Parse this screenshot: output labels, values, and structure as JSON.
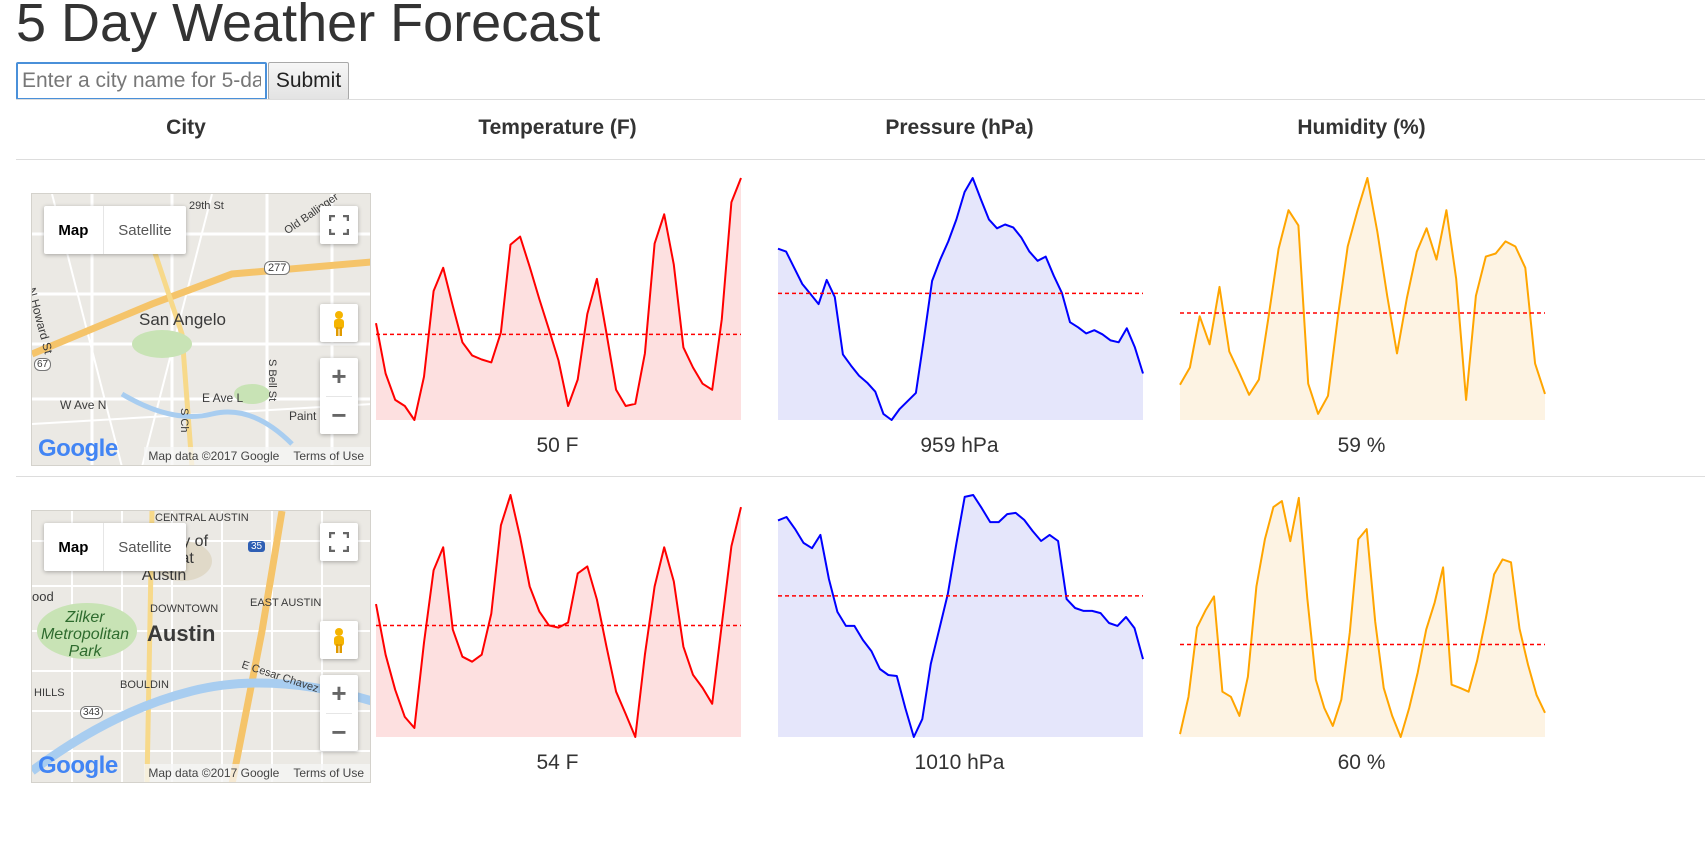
{
  "page": {
    "title": "5 Day Weather Forecast"
  },
  "search": {
    "placeholder": "Enter a city name for 5-day forecast",
    "submit_label": "Submit"
  },
  "table": {
    "headers": [
      "City",
      "Temperature (F)",
      "Pressure (hPa)",
      "Humidity (%)"
    ]
  },
  "colors": {
    "temperature": "#ff0000",
    "temperature_fill": "#fde0e0",
    "pressure": "#0000ff",
    "pressure_fill": "#e5e6fb",
    "humidity": "#ffa500",
    "humidity_fill": "#fdf3e3",
    "average_line": "#ff0000"
  },
  "map_common": {
    "map_label": "Map",
    "satellite_label": "Satellite",
    "attribution": "Map data ©2017 Google",
    "terms": "Terms of Use",
    "logo": "Google"
  },
  "rows": [
    {
      "city": "San Angelo",
      "map": {
        "place_labels": [
          "San Angelo",
          "N Howard St",
          "W Ave N",
          "E Ave L",
          "S Bell St",
          "Paint Rock",
          "29th St",
          "Old Ballinger",
          "277",
          "67",
          "S Ch"
        ]
      },
      "temperature_label": "50 F",
      "pressure_label": "959 hPa",
      "humidity_label": "59 %"
    },
    {
      "city": "Austin",
      "map": {
        "place_labels": [
          "CENTRAL AUSTIN",
          "University of Texas at Austin",
          "Zilker Metropolitan Park",
          "DOWNTOWN",
          "Austin",
          "EAST AUSTIN",
          "BOULDIN",
          "HILLS",
          "E Cesar Chavez",
          "ood",
          "35",
          "343"
        ]
      },
      "temperature_label": "54 F",
      "pressure_label": "1010 hPa",
      "humidity_label": "60 %"
    }
  ],
  "chart_data": [
    {
      "type": "area",
      "title": "",
      "series": [
        {
          "values": [
            40.0,
            19.2,
            8.3,
            5.8,
            0.0,
            17.9,
            53.3,
            62.9,
            47.1,
            32.1,
            26.7,
            25.0,
            23.8,
            36.2,
            72.5,
            75.8,
            63.3,
            50.0,
            37.5,
            24.6,
            5.8,
            16.7,
            43.8,
            58.3,
            35.8,
            12.5,
            5.8,
            6.7,
            27.5,
            72.9,
            85.0,
            64.2,
            30.0,
            21.7,
            15.0,
            12.5,
            41.7,
            90.0,
            100.0
          ]
        }
      ],
      "average": 35.4
    },
    {
      "type": "area",
      "title": "",
      "series": [
        {
          "values": [
            70.8,
            69.6,
            62.9,
            56.2,
            52.1,
            47.9,
            57.9,
            50.8,
            27.1,
            22.5,
            18.3,
            15.4,
            11.7,
            2.5,
            0.0,
            4.6,
            7.9,
            11.2,
            33.8,
            57.5,
            66.3,
            73.8,
            82.9,
            94.2,
            100.0,
            91.3,
            82.9,
            79.2,
            80.8,
            79.6,
            75.4,
            69.6,
            65.8,
            67.5,
            59.6,
            52.5,
            40.4,
            38.3,
            35.8,
            37.1,
            35.4,
            32.9,
            32.1,
            37.9,
            30.0,
            19.2
          ]
        }
      ],
      "average": 52.3
    },
    {
      "type": "area",
      "title": "",
      "series": [
        {
          "values": [
            14.6,
            21.7,
            42.9,
            31.3,
            55.0,
            28.3,
            19.6,
            10.4,
            16.7,
            43.3,
            70.8,
            86.7,
            80.4,
            15.0,
            2.5,
            10.0,
            42.5,
            71.7,
            86.7,
            100.0,
            77.9,
            51.3,
            27.5,
            50.4,
            69.6,
            79.2,
            66.3,
            86.7,
            58.3,
            8.3,
            51.3,
            67.5,
            68.8,
            73.8,
            71.7,
            62.9,
            23.3,
            10.8
          ]
        }
      ],
      "average": 44.2
    },
    {
      "type": "area",
      "title": "",
      "series": [
        {
          "values": [
            54.9,
            34.0,
            19.5,
            8.3,
            3.7,
            39.0,
            68.9,
            78.4,
            44.4,
            33.2,
            31.1,
            34.0,
            51.0,
            87.5,
            100.0,
            82.6,
            62.2,
            51.9,
            46.1,
            45.2,
            47.3,
            67.6,
            70.5,
            56.8,
            37.3,
            18.7,
            9.5,
            0.0,
            34.0,
            62.2,
            78.4,
            64.3,
            37.3,
            25.7,
            20.3,
            13.7,
            46.5,
            78.8,
            95.0
          ]
        }
      ],
      "average": 46.1
    },
    {
      "type": "area",
      "title": "",
      "series": [
        {
          "values": [
            89.5,
            90.9,
            86.0,
            80.2,
            78.0,
            83.5,
            65.3,
            51.7,
            45.9,
            45.9,
            40.1,
            35.5,
            28.1,
            25.6,
            25.2,
            12.0,
            0.0,
            7.4,
            30.2,
            44.6,
            59.1,
            79.8,
            99.2,
            100.0,
            94.6,
            88.8,
            88.8,
            92.1,
            92.6,
            89.7,
            85.1,
            81.0,
            83.5,
            81.0,
            57.0,
            53.3,
            52.1,
            52.1,
            51.2,
            47.1,
            45.9,
            49.6,
            45.0,
            32.2
          ]
        }
      ],
      "average": 58.3
    },
    {
      "type": "area",
      "title": "",
      "series": [
        {
          "values": [
            1.2,
            16.6,
            45.2,
            52.3,
            58.1,
            18.7,
            16.6,
            8.7,
            24.9,
            62.2,
            81.7,
            95.0,
            97.5,
            80.9,
            98.8,
            57.3,
            23.7,
            12.0,
            4.6,
            15.4,
            43.2,
            81.7,
            85.9,
            47.7,
            20.3,
            8.7,
            0.0,
            12.0,
            26.6,
            44.4,
            55.6,
            70.1,
            21.6,
            20.3,
            18.7,
            31.5,
            48.5,
            67.2,
            73.4,
            72.2,
            44.8,
            29.9,
            17.4,
            10.0
          ]
        }
      ],
      "average": 38.2
    }
  ]
}
